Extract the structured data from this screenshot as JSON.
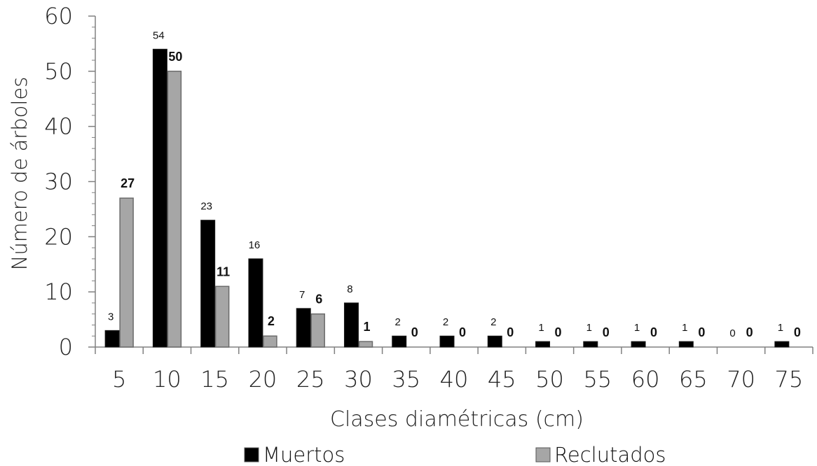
{
  "chart_data": {
    "type": "bar",
    "categories": [
      "5",
      "10",
      "15",
      "20",
      "25",
      "30",
      "35",
      "40",
      "45",
      "50",
      "55",
      "60",
      "65",
      "70",
      "75"
    ],
    "series": [
      {
        "name": "Muertos",
        "color": "#000000",
        "values": [
          3,
          54,
          23,
          16,
          7,
          8,
          2,
          2,
          2,
          1,
          1,
          1,
          1,
          0,
          1
        ]
      },
      {
        "name": "Reclutados",
        "color": "#a6a6a6",
        "values": [
          27,
          50,
          11,
          2,
          6,
          1,
          0,
          0,
          0,
          0,
          0,
          0,
          0,
          0,
          0
        ]
      }
    ],
    "xlabel": "Clases diamétricas (cm)",
    "ylabel": "Número de  árboles",
    "ylim": [
      0,
      60
    ],
    "yticks": [
      "0",
      "10",
      "20",
      "30",
      "40",
      "50",
      "60"
    ],
    "grid": false,
    "legend_position": "bottom"
  }
}
